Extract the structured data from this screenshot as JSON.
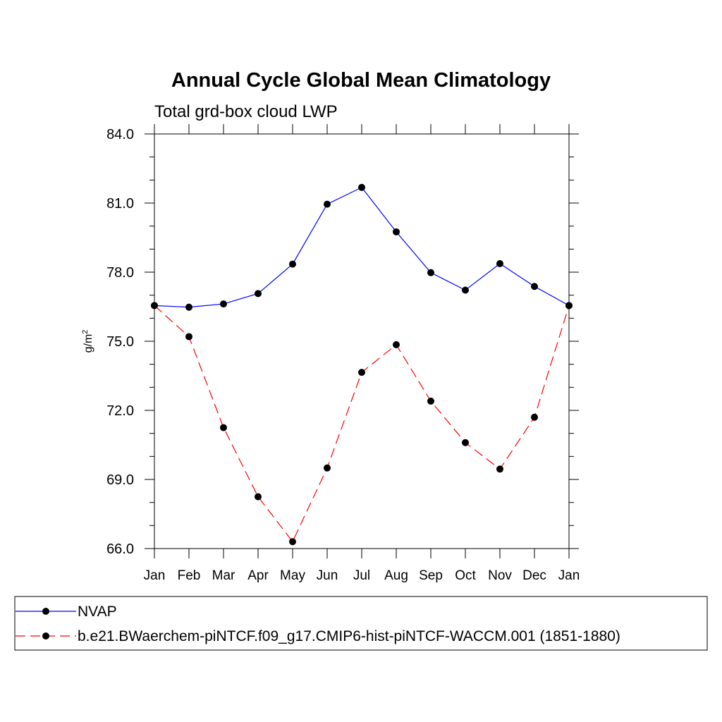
{
  "chart_data": {
    "type": "line",
    "title": "Annual Cycle Global Mean Climatology",
    "subtitle": "Total grd-box cloud LWP",
    "ylabel": "g/m",
    "ylabel_sup": "2",
    "xlabel": "",
    "categories": [
      "Jan",
      "Feb",
      "Mar",
      "Apr",
      "May",
      "Jun",
      "Jul",
      "Aug",
      "Sep",
      "Oct",
      "Nov",
      "Dec",
      "Jan"
    ],
    "ylim": [
      66.0,
      84.0
    ],
    "yticks": [
      "84.0",
      "81.0",
      "78.0",
      "75.0",
      "72.0",
      "69.0",
      "66.0"
    ],
    "ytick_values": [
      84,
      81,
      78,
      75,
      72,
      69,
      66
    ],
    "series": [
      {
        "name": "NVAP",
        "color": "#0000ff",
        "dashed": false,
        "values": [
          76.55,
          76.48,
          76.62,
          77.07,
          78.35,
          80.95,
          81.68,
          79.75,
          77.98,
          77.22,
          78.37,
          77.38,
          76.55
        ]
      },
      {
        "name": "b.e21.BWaerchem-piNTCF.f09_g17.CMIP6-hist-piNTCF-WACCM.001 (1851-1880)",
        "color": "#ff0000",
        "dashed": true,
        "values": [
          76.55,
          75.2,
          71.25,
          68.25,
          66.3,
          69.5,
          73.65,
          74.85,
          72.4,
          70.6,
          69.45,
          71.7,
          76.55
        ]
      }
    ]
  }
}
